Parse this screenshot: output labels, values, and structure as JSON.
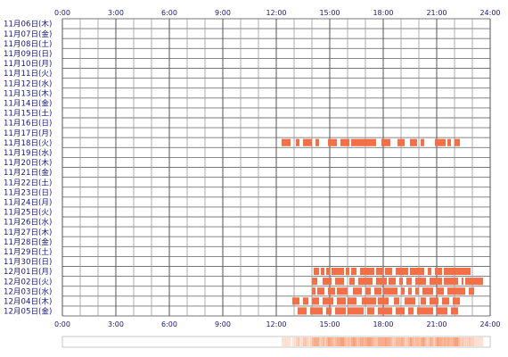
{
  "chart_data": {
    "type": "heatmap",
    "x_ticks": [
      "0:00",
      "3:00",
      "6:00",
      "9:00",
      "12:00",
      "15:00",
      "18:00",
      "21:00",
      "24:00"
    ],
    "xlim": [
      0,
      24
    ],
    "grid": true,
    "rows": [
      {
        "label": "11月06日(木)",
        "segments": []
      },
      {
        "label": "11月07日(金)",
        "segments": []
      },
      {
        "label": "11月08日(土)",
        "segments": []
      },
      {
        "label": "11月09日(日)",
        "segments": []
      },
      {
        "label": "11月10日(月)",
        "segments": []
      },
      {
        "label": "11月11日(火)",
        "segments": []
      },
      {
        "label": "11月12日(水)",
        "segments": []
      },
      {
        "label": "11月13日(木)",
        "segments": []
      },
      {
        "label": "11月14日(金)",
        "segments": []
      },
      {
        "label": "11月15日(土)",
        "segments": []
      },
      {
        "label": "11月16日(日)",
        "segments": []
      },
      {
        "label": "11月17日(月)",
        "segments": []
      },
      {
        "label": "11月18日(火)",
        "segments": [
          [
            12.3,
            12.8
          ],
          [
            13.1,
            13.3
          ],
          [
            13.5,
            14.0
          ],
          [
            14.2,
            14.4
          ],
          [
            14.9,
            15.4
          ],
          [
            15.6,
            16.1
          ],
          [
            16.2,
            17.6
          ],
          [
            17.9,
            18.4
          ],
          [
            18.8,
            19.2
          ],
          [
            19.5,
            19.9
          ],
          [
            20.1,
            20.3
          ],
          [
            20.9,
            21.5
          ],
          [
            21.6,
            21.8
          ],
          [
            22.0,
            22.3
          ]
        ]
      },
      {
        "label": "11月19日(水)",
        "segments": []
      },
      {
        "label": "11月20日(木)",
        "segments": []
      },
      {
        "label": "11月21日(金)",
        "segments": []
      },
      {
        "label": "11月22日(土)",
        "segments": []
      },
      {
        "label": "11月23日(日)",
        "segments": []
      },
      {
        "label": "11月24日(月)",
        "segments": []
      },
      {
        "label": "11月25日(火)",
        "segments": []
      },
      {
        "label": "11月26日(水)",
        "segments": []
      },
      {
        "label": "11月27日(木)",
        "segments": []
      },
      {
        "label": "11月28日(金)",
        "segments": []
      },
      {
        "label": "11月29日(土)",
        "segments": []
      },
      {
        "label": "11月30日(日)",
        "segments": []
      },
      {
        "label": "12月01日(月)",
        "segments": [
          [
            14.1,
            14.4
          ],
          [
            14.5,
            14.7
          ],
          [
            14.8,
            15.0
          ],
          [
            15.1,
            15.8
          ],
          [
            15.9,
            16.1
          ],
          [
            16.2,
            16.5
          ],
          [
            16.7,
            17.5
          ],
          [
            17.6,
            18.0
          ],
          [
            18.1,
            18.5
          ],
          [
            18.7,
            19.4
          ],
          [
            19.5,
            20.3
          ],
          [
            20.5,
            20.7
          ],
          [
            20.9,
            21.3
          ],
          [
            21.4,
            22.9
          ]
        ]
      },
      {
        "label": "12月02日(火)",
        "segments": [
          [
            14.0,
            14.3
          ],
          [
            14.6,
            15.1
          ],
          [
            15.3,
            15.8
          ],
          [
            16.1,
            16.4
          ],
          [
            16.6,
            17.4
          ],
          [
            17.6,
            18.2
          ],
          [
            18.3,
            18.7
          ],
          [
            18.9,
            19.1
          ],
          [
            19.3,
            19.6
          ],
          [
            19.8,
            20.4
          ],
          [
            20.6,
            21.3
          ],
          [
            21.4,
            22.2
          ],
          [
            22.4,
            22.5
          ],
          [
            22.6,
            23.6
          ]
        ]
      },
      {
        "label": "12月03日(水)",
        "segments": [
          [
            14.0,
            14.2
          ],
          [
            14.3,
            14.7
          ],
          [
            14.9,
            15.3
          ],
          [
            15.4,
            16.0
          ],
          [
            16.3,
            16.8
          ],
          [
            17.0,
            17.3
          ],
          [
            17.5,
            17.9
          ],
          [
            18.0,
            18.8
          ],
          [
            19.0,
            19.2
          ],
          [
            19.4,
            19.6
          ],
          [
            19.8,
            20.0
          ],
          [
            20.2,
            20.8
          ],
          [
            21.0,
            21.4
          ],
          [
            21.6,
            22.6
          ],
          [
            22.8,
            23.1
          ]
        ]
      },
      {
        "label": "12月04日(木)",
        "segments": [
          [
            12.9,
            13.3
          ],
          [
            13.5,
            13.8
          ],
          [
            14.0,
            14.4
          ],
          [
            14.6,
            15.2
          ],
          [
            15.4,
            15.9
          ],
          [
            16.0,
            16.5
          ],
          [
            16.8,
            17.6
          ],
          [
            17.7,
            18.3
          ],
          [
            18.6,
            18.9
          ],
          [
            19.2,
            19.8
          ],
          [
            20.1,
            20.4
          ],
          [
            20.6,
            21.1
          ],
          [
            21.3,
            21.7
          ],
          [
            21.9,
            22.3
          ]
        ]
      },
      {
        "label": "12月05日(金)",
        "segments": [
          [
            13.2,
            13.7
          ],
          [
            13.9,
            14.6
          ],
          [
            14.8,
            15.1
          ],
          [
            15.3,
            15.9
          ],
          [
            16.0,
            16.9
          ],
          [
            17.1,
            17.5
          ],
          [
            17.7,
            18.5
          ],
          [
            18.7,
            19.2
          ],
          [
            19.4,
            19.7
          ],
          [
            19.9,
            20.8
          ],
          [
            21.0,
            21.6
          ],
          [
            21.8,
            22.2
          ]
        ]
      }
    ],
    "bar_color": "#f26f48",
    "summary_color": "#f5a37c"
  }
}
